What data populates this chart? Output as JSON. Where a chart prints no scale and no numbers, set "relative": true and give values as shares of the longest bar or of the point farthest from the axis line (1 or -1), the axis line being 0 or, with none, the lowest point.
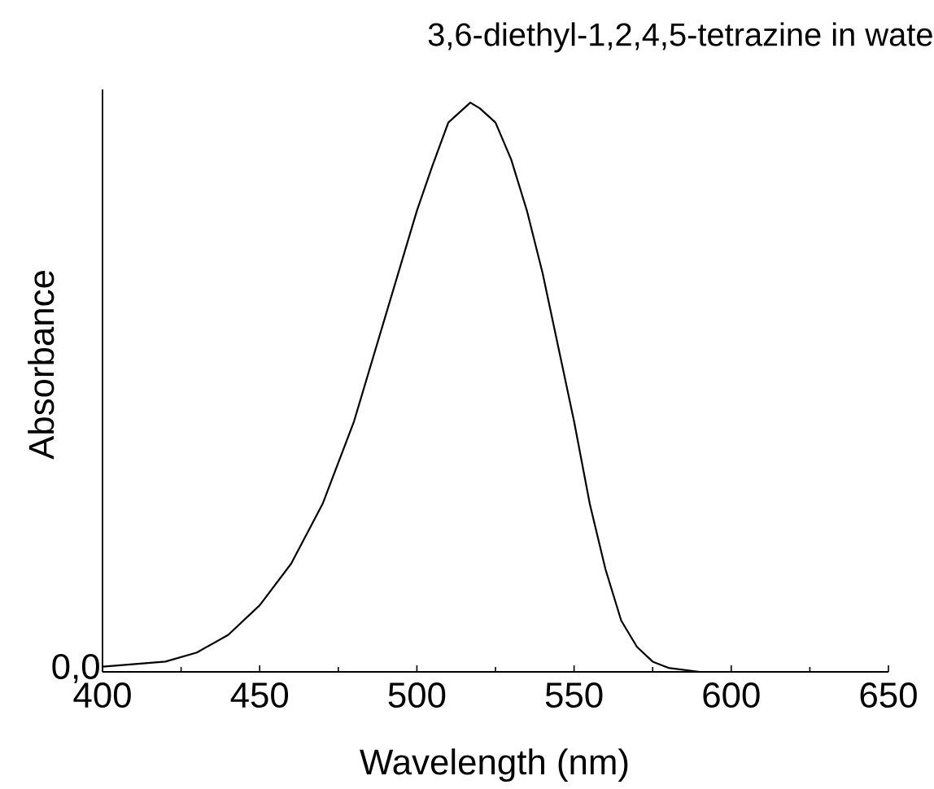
{
  "chart_data": {
    "type": "line",
    "title": "3,6-diethyl-1,2,4,5-tetrazine in wate",
    "xlabel": "Wavelength (nm)",
    "ylabel": "Absorbance",
    "relative": true,
    "x": [
      400,
      420,
      430,
      440,
      450,
      460,
      470,
      480,
      490,
      500,
      505,
      510,
      517,
      520,
      525,
      530,
      535,
      540,
      545,
      550,
      555,
      560,
      565,
      570,
      575,
      580,
      590,
      650
    ],
    "series": [
      {
        "color": "#000000",
        "values": [
          0.009,
          0.018,
          0.034,
          0.065,
          0.117,
          0.19,
          0.295,
          0.44,
          0.625,
          0.81,
          0.89,
          0.965,
          1.0,
          0.99,
          0.965,
          0.9,
          0.81,
          0.7,
          0.57,
          0.44,
          0.295,
          0.18,
          0.09,
          0.044,
          0.018,
          0.007,
          0,
          0
        ]
      }
    ],
    "xlim": [
      400,
      650
    ],
    "xticks": [
      400,
      450,
      500,
      550,
      600,
      650
    ],
    "annotations": [
      "0,0"
    ],
    "marker": "none",
    "line_style": "solid"
  }
}
